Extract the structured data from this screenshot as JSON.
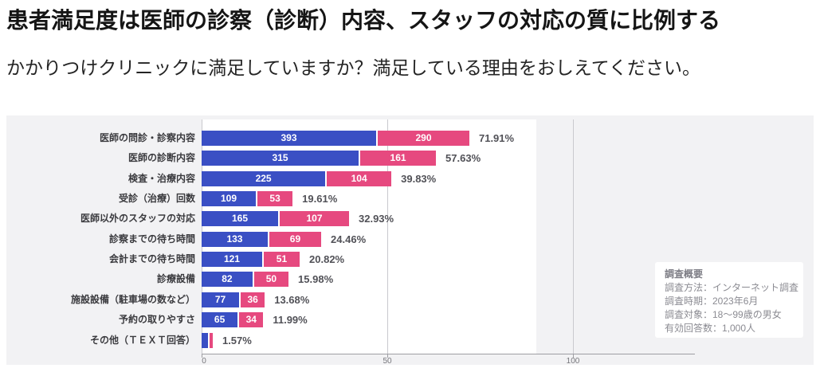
{
  "header": {
    "title": "患者満足度は医師の診察（診断）内容、スタッフの対応の質に比例する",
    "subtitle": "かかりつけクリニックに満足していますか？満足している理由をおしえてください。"
  },
  "chart_data": {
    "type": "bar",
    "orientation": "horizontal",
    "stacked": true,
    "categories": [
      "医師の問診・診察内容",
      "医師の診断内容",
      "検査・治療内容",
      "受診（治療）回数",
      "医師以外のスタッフの対応",
      "診察までの待ち時間",
      "会計までの待ち時間",
      "診療設備",
      "施設設備（駐車場の数など）",
      "予約の取りやすさ",
      "その他（ＴＥＸＴ回答）"
    ],
    "series": [
      {
        "name": "blue-segment",
        "color": "#3a4fc4",
        "values": [
          393,
          315,
          225,
          109,
          165,
          133,
          121,
          82,
          77,
          65,
          null
        ]
      },
      {
        "name": "pink-segment",
        "color": "#e6497f",
        "values": [
          290,
          161,
          104,
          53,
          107,
          69,
          51,
          50,
          36,
          34,
          null
        ]
      }
    ],
    "total_percent_labels": [
      "71.91%",
      "57.63%",
      "39.83%",
      "19.61%",
      "32.93%",
      "24.46%",
      "20.82%",
      "15.98%",
      "13.68%",
      "11.99%",
      "1.57%"
    ],
    "segment_widths_axis_units_estimated": {
      "blue": [
        47.0,
        42.3,
        33.3,
        14.6,
        20.6,
        17.8,
        16.3,
        13.7,
        10.1,
        9.7,
        1.7
      ],
      "pink": [
        25.1,
        20.8,
        17.8,
        9.9,
        19.1,
        14.4,
        10.1,
        9.7,
        6.9,
        6.9,
        1.3
      ]
    },
    "x_ticks": [
      "0",
      "50",
      "100"
    ],
    "xlim": [
      0,
      133
    ],
    "grid": true,
    "legend": false
  },
  "survey_note": {
    "title": "調査概要",
    "lines": [
      "調査方法：インターネット調査",
      "調査時期：2023年6月",
      "調査対象：18〜99歳の男女",
      "有効回答数：1,000人"
    ]
  }
}
